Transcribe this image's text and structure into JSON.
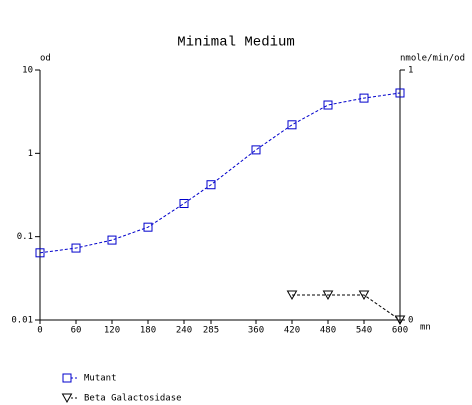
{
  "chart_data": {
    "type": "line",
    "title": "Minimal Medium",
    "y_label": "od",
    "y2_label": "nmole/min/od",
    "x_label": "mn",
    "x": [
      0,
      60,
      120,
      180,
      240,
      285,
      360,
      420,
      480,
      540,
      600
    ],
    "xlim": [
      0,
      600
    ],
    "xticks": [
      0,
      60,
      120,
      180,
      240,
      285,
      360,
      420,
      480,
      540,
      600
    ],
    "ylim": [
      0.01,
      10
    ],
    "yticks": [
      0.01,
      0.1,
      1,
      10
    ],
    "y_log": true,
    "y2lim": [
      0,
      1
    ],
    "y2ticks": [
      0,
      1
    ],
    "series": [
      {
        "name": "Mutant",
        "color": "#0000cc",
        "marker": "square",
        "values": [
          0.064,
          0.073,
          0.091,
          0.13,
          0.25,
          0.42,
          1.1,
          2.2,
          3.8,
          4.6,
          5.3
        ]
      },
      {
        "name": "Beta Galactosidase",
        "color": "#000000",
        "marker": "triangle-down",
        "axis": "y2",
        "values": [
          null,
          null,
          null,
          null,
          null,
          null,
          null,
          0.1,
          0.1,
          0.1,
          0
        ]
      }
    ]
  }
}
